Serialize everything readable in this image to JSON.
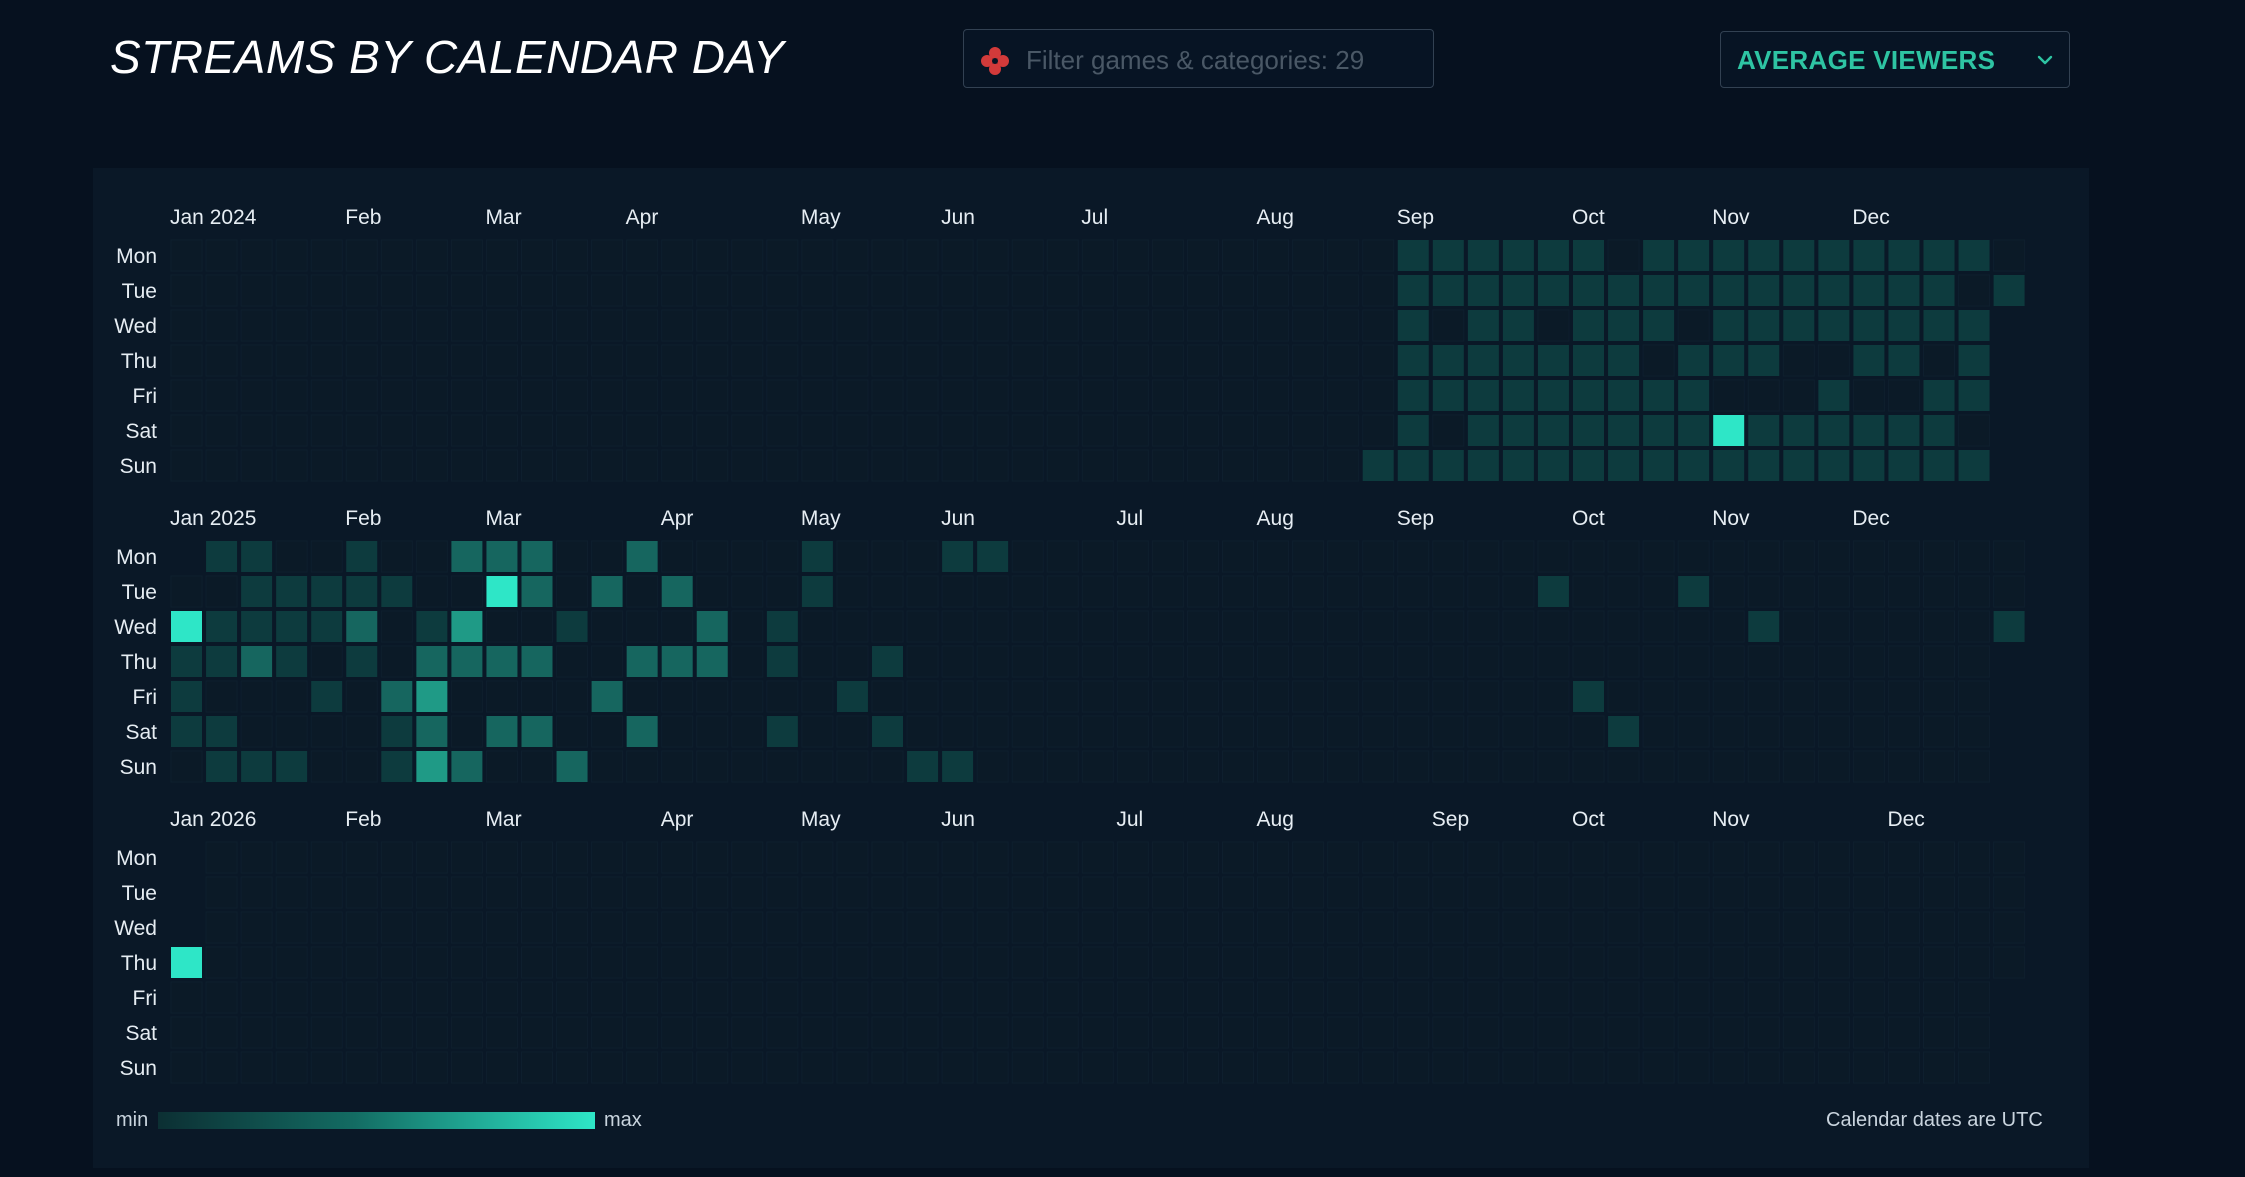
{
  "header": {
    "title": "STREAMS BY CALENDAR DAY",
    "filter_placeholder": "Filter games & categories: 29",
    "filter_value": "",
    "filter_icon": "gamepad-icon",
    "metric_label": "AVERAGE VIEWERS",
    "metric_icon": "chevron-down-icon"
  },
  "colors": {
    "background": "#06111f",
    "panel": "#0a1827",
    "empty_cell": "#0b1a27",
    "accent": "#2ec4a3",
    "scale_min": "#0c2f33",
    "scale_max": "#2ee6c7",
    "filter_icon": "#d23a3a"
  },
  "chart_data": {
    "type": "heatmap",
    "title": "STREAMS BY CALENDAR DAY",
    "metric": "AVERAGE VIEWERS",
    "days": [
      "Mon",
      "Tue",
      "Wed",
      "Thu",
      "Fri",
      "Sat",
      "Sun"
    ],
    "intensity_scale": "0-4 (0 = no stream, 4 = max)",
    "years": [
      {
        "label": "Jan 2024",
        "months": [
          {
            "label": "Jan 2024",
            "week": 0
          },
          {
            "label": "Feb",
            "week": 5
          },
          {
            "label": "Mar",
            "week": 9
          },
          {
            "label": "Apr",
            "week": 13
          },
          {
            "label": "May",
            "week": 18
          },
          {
            "label": "Jun",
            "week": 22
          },
          {
            "label": "Jul",
            "week": 26
          },
          {
            "label": "Aug",
            "week": 31
          },
          {
            "label": "Sep",
            "week": 35
          },
          {
            "label": "Oct",
            "week": 40
          },
          {
            "label": "Nov",
            "week": 44
          },
          {
            "label": "Dec",
            "week": 48
          }
        ],
        "weeks": 53,
        "grid_start": [
          0,
          0
        ],
        "grid_end": [
          52,
          1
        ],
        "cells": [
          [
            34,
            6,
            1
          ],
          [
            35,
            0,
            1
          ],
          [
            35,
            1,
            1
          ],
          [
            35,
            2,
            1
          ],
          [
            35,
            3,
            1
          ],
          [
            35,
            4,
            1
          ],
          [
            35,
            5,
            1
          ],
          [
            35,
            6,
            1
          ],
          [
            36,
            0,
            1
          ],
          [
            36,
            1,
            1
          ],
          [
            36,
            3,
            1
          ],
          [
            36,
            4,
            1
          ],
          [
            36,
            6,
            1
          ],
          [
            37,
            0,
            1
          ],
          [
            37,
            1,
            1
          ],
          [
            37,
            2,
            1
          ],
          [
            37,
            3,
            1
          ],
          [
            37,
            4,
            1
          ],
          [
            37,
            5,
            1
          ],
          [
            37,
            6,
            1
          ],
          [
            38,
            0,
            1
          ],
          [
            38,
            1,
            1
          ],
          [
            38,
            2,
            1
          ],
          [
            38,
            3,
            1
          ],
          [
            38,
            4,
            1
          ],
          [
            38,
            5,
            1
          ],
          [
            38,
            6,
            1
          ],
          [
            39,
            0,
            1
          ],
          [
            39,
            1,
            1
          ],
          [
            39,
            3,
            1
          ],
          [
            39,
            4,
            1
          ],
          [
            39,
            5,
            1
          ],
          [
            39,
            6,
            1
          ],
          [
            40,
            0,
            1
          ],
          [
            40,
            1,
            1
          ],
          [
            40,
            2,
            1
          ],
          [
            40,
            3,
            1
          ],
          [
            40,
            4,
            1
          ],
          [
            40,
            5,
            1
          ],
          [
            40,
            6,
            1
          ],
          [
            41,
            1,
            1
          ],
          [
            41,
            2,
            1
          ],
          [
            41,
            3,
            1
          ],
          [
            41,
            4,
            1
          ],
          [
            41,
            5,
            1
          ],
          [
            41,
            6,
            1
          ],
          [
            42,
            0,
            1
          ],
          [
            42,
            1,
            1
          ],
          [
            42,
            2,
            1
          ],
          [
            42,
            4,
            1
          ],
          [
            42,
            5,
            1
          ],
          [
            42,
            6,
            1
          ],
          [
            43,
            0,
            1
          ],
          [
            43,
            1,
            1
          ],
          [
            43,
            3,
            1
          ],
          [
            43,
            4,
            1
          ],
          [
            43,
            5,
            1
          ],
          [
            43,
            6,
            1
          ],
          [
            44,
            0,
            1
          ],
          [
            44,
            1,
            1
          ],
          [
            44,
            2,
            1
          ],
          [
            44,
            3,
            1
          ],
          [
            44,
            5,
            4
          ],
          [
            44,
            6,
            1
          ],
          [
            45,
            0,
            1
          ],
          [
            45,
            1,
            1
          ],
          [
            45,
            2,
            1
          ],
          [
            45,
            3,
            1
          ],
          [
            45,
            5,
            1
          ],
          [
            45,
            6,
            1
          ],
          [
            46,
            0,
            1
          ],
          [
            46,
            1,
            1
          ],
          [
            46,
            2,
            1
          ],
          [
            46,
            5,
            1
          ],
          [
            46,
            6,
            1
          ],
          [
            47,
            0,
            1
          ],
          [
            47,
            1,
            1
          ],
          [
            47,
            2,
            1
          ],
          [
            47,
            4,
            1
          ],
          [
            47,
            5,
            1
          ],
          [
            47,
            6,
            1
          ],
          [
            48,
            0,
            1
          ],
          [
            48,
            1,
            1
          ],
          [
            48,
            2,
            1
          ],
          [
            48,
            3,
            1
          ],
          [
            48,
            5,
            1
          ],
          [
            48,
            6,
            1
          ],
          [
            49,
            0,
            1
          ],
          [
            49,
            1,
            1
          ],
          [
            49,
            2,
            1
          ],
          [
            49,
            3,
            1
          ],
          [
            49,
            5,
            1
          ],
          [
            49,
            6,
            1
          ],
          [
            50,
            0,
            1
          ],
          [
            50,
            1,
            1
          ],
          [
            50,
            2,
            1
          ],
          [
            50,
            4,
            1
          ],
          [
            50,
            5,
            1
          ],
          [
            50,
            6,
            1
          ],
          [
            51,
            0,
            1
          ],
          [
            51,
            2,
            1
          ],
          [
            51,
            3,
            1
          ],
          [
            51,
            4,
            1
          ],
          [
            51,
            6,
            1
          ],
          [
            52,
            1,
            1
          ]
        ]
      },
      {
        "label": "Jan 2025",
        "months": [
          {
            "label": "Jan 2025",
            "week": 0
          },
          {
            "label": "Feb",
            "week": 5
          },
          {
            "label": "Mar",
            "week": 9
          },
          {
            "label": "Apr",
            "week": 14
          },
          {
            "label": "May",
            "week": 18
          },
          {
            "label": "Jun",
            "week": 22
          },
          {
            "label": "Jul",
            "week": 27
          },
          {
            "label": "Aug",
            "week": 31
          },
          {
            "label": "Sep",
            "week": 35
          },
          {
            "label": "Oct",
            "week": 40
          },
          {
            "label": "Nov",
            "week": 44
          },
          {
            "label": "Dec",
            "week": 48
          }
        ],
        "weeks": 53,
        "grid_start": [
          0,
          1
        ],
        "grid_end": [
          52,
          2
        ],
        "cells": [
          [
            0,
            2,
            4
          ],
          [
            0,
            3,
            1
          ],
          [
            0,
            4,
            1
          ],
          [
            0,
            5,
            1
          ],
          [
            1,
            0,
            1
          ],
          [
            1,
            2,
            1
          ],
          [
            1,
            3,
            1
          ],
          [
            1,
            5,
            1
          ],
          [
            1,
            6,
            1
          ],
          [
            2,
            0,
            1
          ],
          [
            2,
            1,
            1
          ],
          [
            2,
            2,
            1
          ],
          [
            2,
            3,
            2
          ],
          [
            2,
            6,
            1
          ],
          [
            3,
            1,
            1
          ],
          [
            3,
            2,
            1
          ],
          [
            3,
            3,
            1
          ],
          [
            3,
            6,
            1
          ],
          [
            4,
            1,
            1
          ],
          [
            4,
            2,
            1
          ],
          [
            4,
            4,
            1
          ],
          [
            5,
            0,
            1
          ],
          [
            5,
            1,
            1
          ],
          [
            5,
            2,
            2
          ],
          [
            5,
            3,
            1
          ],
          [
            6,
            1,
            1
          ],
          [
            6,
            4,
            2
          ],
          [
            6,
            5,
            1
          ],
          [
            6,
            6,
            1
          ],
          [
            7,
            2,
            1
          ],
          [
            7,
            3,
            2
          ],
          [
            7,
            4,
            3
          ],
          [
            7,
            5,
            2
          ],
          [
            7,
            6,
            3
          ],
          [
            8,
            0,
            2
          ],
          [
            8,
            2,
            3
          ],
          [
            8,
            3,
            2
          ],
          [
            8,
            6,
            2
          ],
          [
            9,
            0,
            2
          ],
          [
            9,
            1,
            4
          ],
          [
            9,
            3,
            2
          ],
          [
            9,
            5,
            2
          ],
          [
            10,
            0,
            2
          ],
          [
            10,
            1,
            2
          ],
          [
            10,
            3,
            2
          ],
          [
            10,
            5,
            2
          ],
          [
            11,
            2,
            1
          ],
          [
            11,
            6,
            2
          ],
          [
            12,
            1,
            2
          ],
          [
            12,
            4,
            2
          ],
          [
            13,
            0,
            2
          ],
          [
            13,
            3,
            2
          ],
          [
            13,
            5,
            2
          ],
          [
            14,
            1,
            2
          ],
          [
            14,
            3,
            2
          ],
          [
            15,
            2,
            2
          ],
          [
            15,
            3,
            2
          ],
          [
            17,
            2,
            1
          ],
          [
            17,
            3,
            1
          ],
          [
            17,
            5,
            1
          ],
          [
            18,
            0,
            1
          ],
          [
            18,
            1,
            1
          ],
          [
            19,
            4,
            1
          ],
          [
            20,
            3,
            1
          ],
          [
            20,
            5,
            1
          ],
          [
            21,
            6,
            1
          ],
          [
            22,
            0,
            1
          ],
          [
            22,
            6,
            1
          ],
          [
            23,
            0,
            1
          ],
          [
            39,
            1,
            1
          ],
          [
            40,
            4,
            1
          ],
          [
            41,
            5,
            1
          ],
          [
            43,
            1,
            1
          ],
          [
            45,
            2,
            1
          ],
          [
            52,
            2,
            1
          ]
        ]
      },
      {
        "label": "Jan 2026",
        "months": [
          {
            "label": "Jan 2026",
            "week": 0
          },
          {
            "label": "Feb",
            "week": 5
          },
          {
            "label": "Mar",
            "week": 9
          },
          {
            "label": "Apr",
            "week": 14
          },
          {
            "label": "May",
            "week": 18
          },
          {
            "label": "Jun",
            "week": 22
          },
          {
            "label": "Jul",
            "week": 27
          },
          {
            "label": "Aug",
            "week": 31
          },
          {
            "label": "Sep",
            "week": 36
          },
          {
            "label": "Oct",
            "week": 40
          },
          {
            "label": "Nov",
            "week": 44
          },
          {
            "label": "Dec",
            "week": 49
          }
        ],
        "weeks": 53,
        "grid_start": [
          0,
          3
        ],
        "grid_end": [
          52,
          3
        ],
        "cells": [
          [
            0,
            3,
            4
          ]
        ]
      }
    ]
  },
  "legend": {
    "min_label": "min",
    "max_label": "max",
    "note": "Calendar dates are UTC"
  }
}
